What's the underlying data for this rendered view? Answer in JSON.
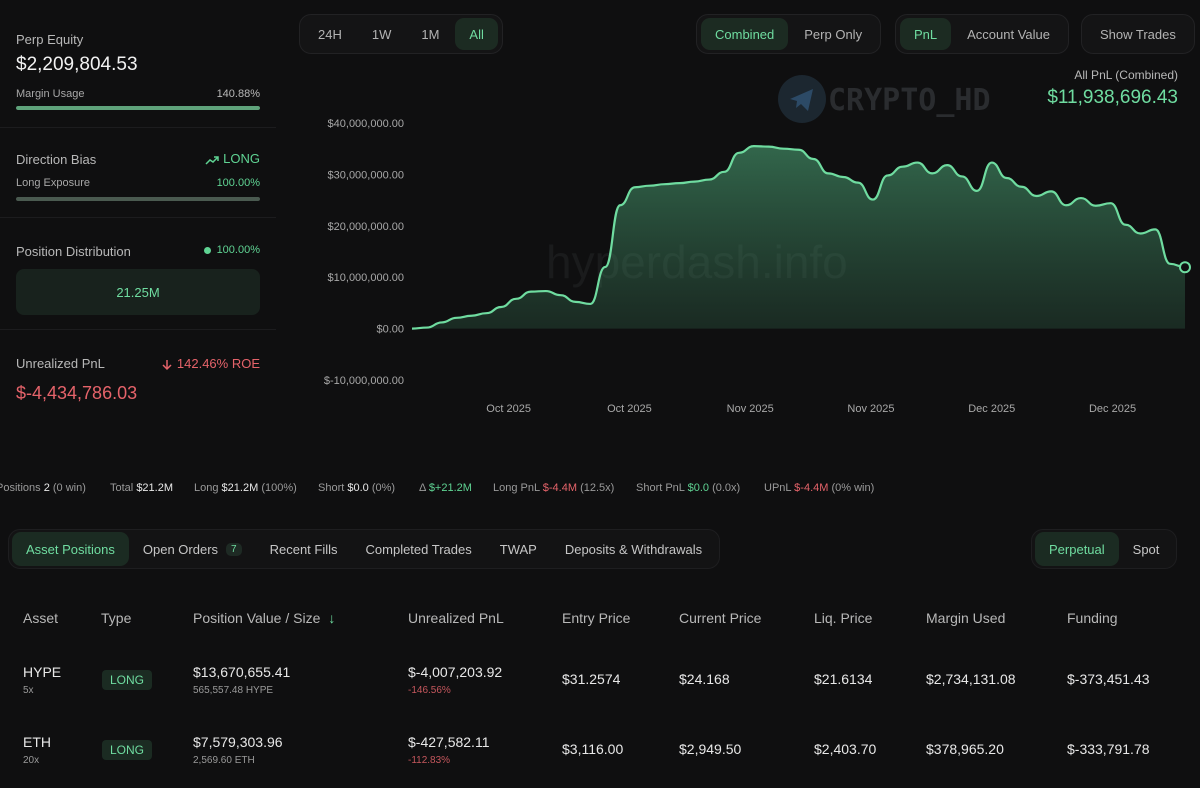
{
  "left_panel": {
    "perp_equity": {
      "label": "Perp Equity",
      "value": "$2,209,804.53"
    },
    "margin_usage": {
      "label": "Margin Usage",
      "value": "140.88%",
      "fill": 1.0
    },
    "direction_bias": {
      "label": "Direction Bias",
      "value": "LONG",
      "icon": "trend-up-icon"
    },
    "long_exposure": {
      "label": "Long Exposure",
      "value": "100.00%",
      "fill": 1.0
    },
    "position_distribution": {
      "label": "Position Distribution",
      "value": "100.00%",
      "box_value": "21.25M"
    },
    "unrealized_pnl": {
      "label": "Unrealized PnL",
      "roe": "142.46% ROE",
      "value": "$-4,434,786.03",
      "icon": "arrow-down-icon"
    }
  },
  "time_range": {
    "options": [
      "24H",
      "1W",
      "1M",
      "All"
    ],
    "selected": "All"
  },
  "view_mode": {
    "options": [
      "Combined",
      "Perp Only"
    ],
    "selected": "Combined"
  },
  "metric": {
    "options": [
      "PnL",
      "Account Value"
    ],
    "selected": "PnL"
  },
  "show_trades_label": "Show Trades",
  "watermark": {
    "brand": "CRYPTO_HD",
    "site": "hyperdash.info"
  },
  "pnl_header": {
    "label": "All PnL (Combined)",
    "value": "$11,938,696.43"
  },
  "chart_data": {
    "type": "area",
    "title": "",
    "xlabel": "",
    "ylabel": "",
    "y_ticks": [
      "$40,000,000.00",
      "$30,000,000.00",
      "$20,000,000.00",
      "$10,000,000.00",
      "$0.00",
      "$-10,000,000.00"
    ],
    "x_ticks": [
      "Oct 2025",
      "Oct 2025",
      "Nov 2025",
      "Nov 2025",
      "Dec 2025",
      "Dec 2025"
    ],
    "ylim": [
      -10000000,
      40000000
    ],
    "colors": {
      "line": "#6fdca0",
      "fill": "#5fd393"
    },
    "series": [
      {
        "values": [
          0,
          200000,
          1200000,
          2100000,
          2500000,
          3000000,
          4200000,
          5800000,
          7200000,
          7300000,
          6500000,
          5200000,
          4800000,
          12000000,
          24000000,
          27500000,
          27800000,
          28100000,
          28300000,
          28600000,
          29000000,
          30500000,
          34200000,
          35500000,
          35400000,
          35000000,
          34800000,
          33000000,
          30200000,
          29500000,
          28400000,
          25100000,
          29800000,
          31500000,
          32300000,
          30200000,
          31800000,
          29600000,
          26800000,
          32300000,
          29300000,
          27600000,
          25800000,
          26700000,
          24000000,
          25400000,
          23900000,
          24400000,
          20200000,
          18500000,
          19300000,
          12600000,
          11938696
        ]
      }
    ]
  },
  "summary": {
    "positions": {
      "label": "Positions",
      "value": "2",
      "note": "(0 win)"
    },
    "total": {
      "label": "Total",
      "value": "$21.2M"
    },
    "long": {
      "label": "Long",
      "value": "$21.2M",
      "note": "(100%)"
    },
    "short": {
      "label": "Short",
      "value": "$0.0",
      "note": "(0%)"
    },
    "delta": {
      "label": "Δ",
      "value": "$+21.2M"
    },
    "long_pnl": {
      "label": "Long PnL",
      "value": "$-4.4M",
      "note": "(12.5x)"
    },
    "short_pnl": {
      "label": "Short PnL",
      "value": "$0.0",
      "note": "(0.0x)"
    },
    "upnl": {
      "label": "UPnL",
      "value": "$-4.4M",
      "note": "(0% win)"
    }
  },
  "tabs": {
    "items": [
      "Asset Positions",
      "Open Orders",
      "Recent Fills",
      "Completed Trades",
      "TWAP",
      "Deposits & Withdrawals"
    ],
    "open_orders_badge": "7",
    "selected": "Asset Positions"
  },
  "market_type": {
    "options": [
      "Perpetual",
      "Spot"
    ],
    "selected": "Perpetual"
  },
  "table": {
    "headers": [
      "Asset",
      "Type",
      "Position Value / Size",
      "Unrealized PnL",
      "Entry Price",
      "Current Price",
      "Liq. Price",
      "Margin Used",
      "Funding"
    ],
    "sort_icon": "arrow-down-icon",
    "rows": [
      {
        "asset": "HYPE",
        "leverage": "5x",
        "type": "LONG",
        "value": "$13,670,655.41",
        "size": "565,557.48 HYPE",
        "upnl": "$-4,007,203.92",
        "upnl_pct": "-146.56%",
        "entry": "$31.2574",
        "current": "$24.168",
        "liq": "$21.6134",
        "margin": "$2,734,131.08",
        "funding": "$-373,451.43"
      },
      {
        "asset": "ETH",
        "leverage": "20x",
        "type": "LONG",
        "value": "$7,579,303.96",
        "size": "2,569.60 ETH",
        "upnl": "$-427,582.11",
        "upnl_pct": "-112.83%",
        "entry": "$3,116.00",
        "current": "$2,949.50",
        "liq": "$2,403.70",
        "margin": "$378,965.20",
        "funding": "$-333,791.78"
      }
    ]
  }
}
